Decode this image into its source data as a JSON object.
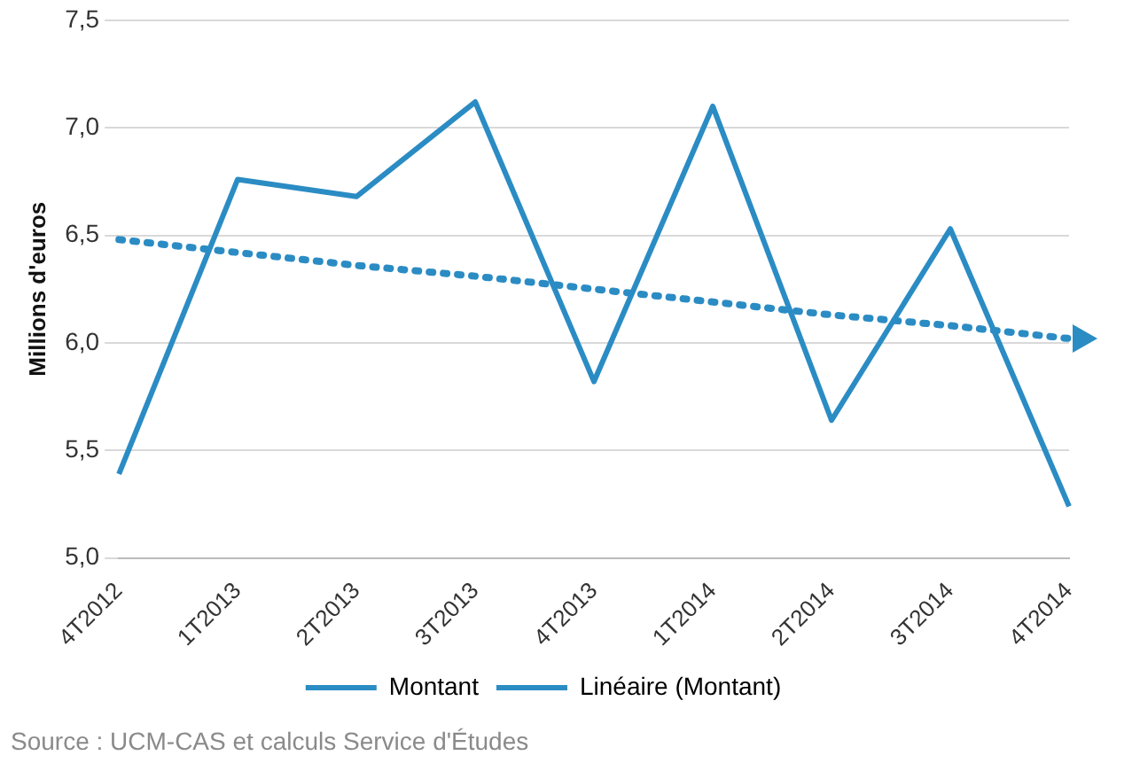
{
  "chart_data": {
    "type": "line",
    "ylabel": "Millions d'euros",
    "categories": [
      "4T2012",
      "1T2013",
      "2T2013",
      "3T2013",
      "4T2013",
      "1T2014",
      "2T2014",
      "3T2014",
      "4T2014"
    ],
    "series": [
      {
        "name": "Montant",
        "color": "#2b8cc4",
        "values": [
          5.39,
          6.76,
          6.68,
          7.12,
          5.82,
          7.1,
          5.64,
          6.53,
          5.24
        ],
        "line_style": "solid"
      },
      {
        "name": "Linéaire (Montant)",
        "color": "#2b8cc4",
        "values": [
          6.48,
          6.42,
          6.36,
          6.31,
          6.25,
          6.19,
          6.13,
          6.08,
          6.02
        ],
        "line_style": "dotted"
      }
    ],
    "ylim": [
      5,
      7.5
    ],
    "yticks": [
      {
        "value": 5,
        "label": "5,0"
      },
      {
        "value": 5.5,
        "label": "5,5"
      },
      {
        "value": 6,
        "label": "6,0"
      },
      {
        "value": 6.5,
        "label": "6,5"
      },
      {
        "value": 7,
        "label": "7,0"
      },
      {
        "value": 7.5,
        "label": "7,5"
      }
    ],
    "grid": "y",
    "legend": "bottom",
    "marker": "none",
    "annotations": [
      "Source : UCM-CAS et calculs Service d'Études"
    ]
  }
}
